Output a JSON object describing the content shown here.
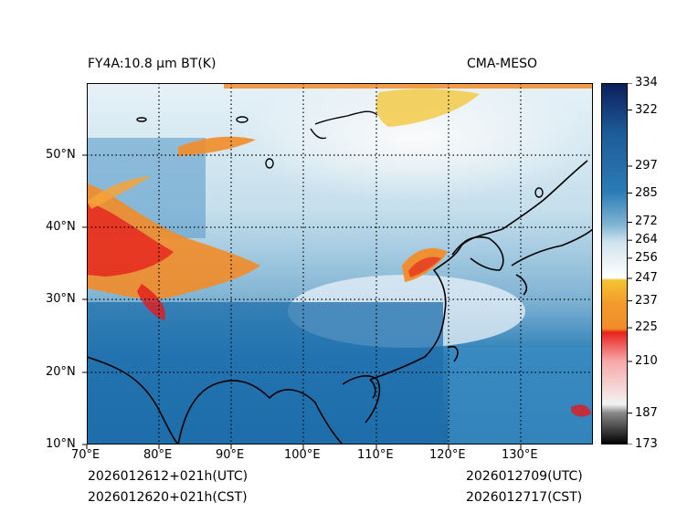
{
  "figure": {
    "title_left": "FY4A:10.8 µm BT(K)",
    "title_right": "CMA-MESO",
    "init_utc": "2026012612+021h(UTC)",
    "init_cst": "2026012620+021h(CST)",
    "valid_utc": "2026012709(UTC)",
    "valid_cst": "2026012717(CST)"
  },
  "axes": {
    "x_ticks": [
      "70°E",
      "80°E",
      "90°E",
      "100°E",
      "110°E",
      "120°E",
      "130°E"
    ],
    "y_ticks": [
      "10°N",
      "20°N",
      "30°N",
      "40°N",
      "50°N"
    ],
    "lon_range": [
      70,
      140
    ],
    "lat_range": [
      10,
      60
    ]
  },
  "colorbar": {
    "range": [
      173,
      334
    ],
    "tick_values": [
      173,
      187,
      210,
      225,
      237,
      247,
      256,
      264,
      272,
      285,
      297,
      322,
      334
    ],
    "tick_labels": [
      "173",
      "187",
      "210",
      "225",
      "237",
      "247",
      "256",
      "264",
      "272",
      "285",
      "297",
      "322",
      "334"
    ]
  },
  "colors": {
    "ocean": "#2c7bb6",
    "deep_blue": "#1a5f9e",
    "land_light": "#d6e8f2",
    "cold_cloud": "#f7f7f7",
    "orange": "#f58d2a",
    "red": "#e8221c",
    "yellow": "#f4c430"
  }
}
